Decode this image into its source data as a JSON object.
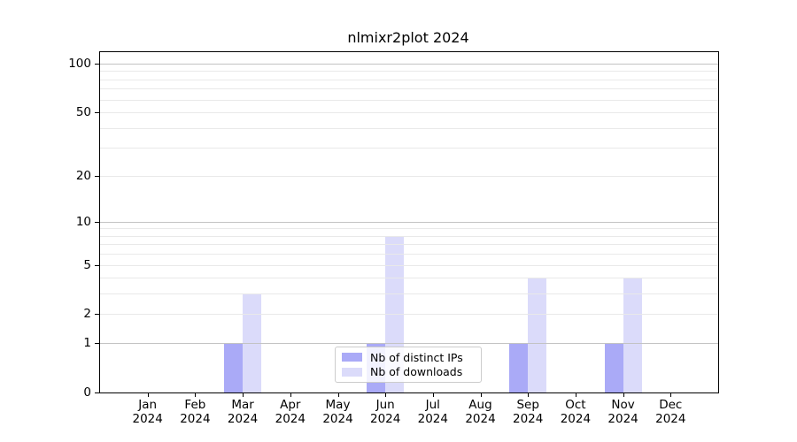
{
  "chart_data": {
    "type": "bar",
    "title": "nlmixr2plot 2024",
    "categories": [
      "Jan",
      "Feb",
      "Mar",
      "Apr",
      "May",
      "Jun",
      "Jul",
      "Aug",
      "Sep",
      "Oct",
      "Nov",
      "Dec"
    ],
    "x_sublabel": "2024",
    "series": [
      {
        "name": "Nb of distinct IPs",
        "color": "#aaaaf7",
        "values": [
          0,
          0,
          1,
          0,
          0,
          1,
          0,
          0,
          1,
          0,
          1,
          0
        ]
      },
      {
        "name": "Nb of downloads",
        "color": "#dbdbfa",
        "values": [
          0,
          0,
          3,
          0,
          0,
          8,
          0,
          0,
          4,
          0,
          4,
          0
        ]
      }
    ],
    "y_scale": "log1p",
    "ylim": [
      0,
      100
    ],
    "y_ticks": [
      0,
      1,
      2,
      5,
      10,
      20,
      50,
      100
    ],
    "y_minor_gridlines": [
      3,
      4,
      6,
      7,
      8,
      9,
      30,
      40,
      60,
      70,
      80,
      90
    ],
    "grid": true,
    "legend_position": "bottom-center",
    "colors": {
      "decade_gridline": "#c3c3c3",
      "minor_gridline": "#e9e9e9",
      "axis": "#000000"
    }
  }
}
